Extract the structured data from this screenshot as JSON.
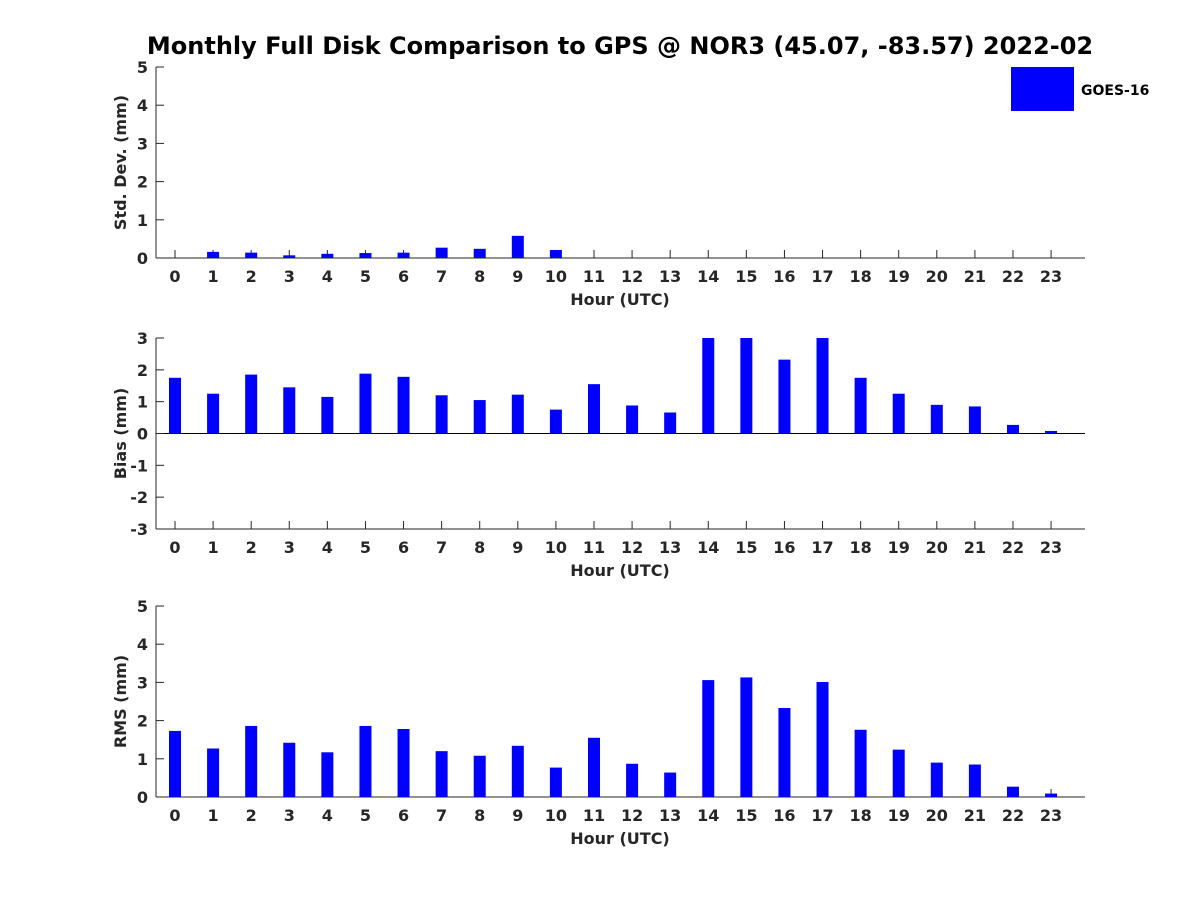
{
  "title": "Monthly Full Disk Comparison to GPS @ NOR3 (45.07, -83.57) 2022-02",
  "legend": {
    "label": "GOES-16",
    "color": "#0000ff"
  },
  "chart_data": [
    {
      "type": "bar",
      "panel": "std",
      "xlabel": "Hour (UTC)",
      "ylabel": "Std. Dev. (mm)",
      "ylim": [
        0,
        5
      ],
      "yticks": [
        0,
        1,
        2,
        3,
        4,
        5
      ],
      "categories": [
        "0",
        "1",
        "2",
        "3",
        "4",
        "5",
        "6",
        "7",
        "8",
        "9",
        "10",
        "11",
        "12",
        "13",
        "14",
        "15",
        "16",
        "17",
        "18",
        "19",
        "20",
        "21",
        "22",
        "23"
      ],
      "series": [
        {
          "name": "GOES-16",
          "values": [
            0,
            0.16,
            0.14,
            0.07,
            0.11,
            0.13,
            0.14,
            0.27,
            0.24,
            0.58,
            0.21,
            0,
            0,
            0,
            0,
            0,
            0,
            0,
            0,
            0,
            0,
            0,
            0,
            0
          ]
        }
      ]
    },
    {
      "type": "bar",
      "panel": "bias",
      "xlabel": "Hour (UTC)",
      "ylabel": "Bias (mm)",
      "ylim": [
        -3,
        3
      ],
      "yticks": [
        -3,
        -2,
        -1,
        0,
        1,
        2,
        3
      ],
      "categories": [
        "0",
        "1",
        "2",
        "3",
        "4",
        "5",
        "6",
        "7",
        "8",
        "9",
        "10",
        "11",
        "12",
        "13",
        "14",
        "15",
        "16",
        "17",
        "18",
        "19",
        "20",
        "21",
        "22",
        "23"
      ],
      "series": [
        {
          "name": "GOES-16",
          "values": [
            1.75,
            1.25,
            1.85,
            1.45,
            1.15,
            1.88,
            1.78,
            1.2,
            1.05,
            1.22,
            0.75,
            1.55,
            0.88,
            0.66,
            3.0,
            3.0,
            2.32,
            3.0,
            1.75,
            1.25,
            0.9,
            0.85,
            0.27,
            0.08
          ]
        }
      ]
    },
    {
      "type": "bar",
      "panel": "rms",
      "xlabel": "Hour (UTC)",
      "ylabel": "RMS (mm)",
      "ylim": [
        0,
        5
      ],
      "yticks": [
        0,
        1,
        2,
        3,
        4,
        5
      ],
      "categories": [
        "0",
        "1",
        "2",
        "3",
        "4",
        "5",
        "6",
        "7",
        "8",
        "9",
        "10",
        "11",
        "12",
        "13",
        "14",
        "15",
        "16",
        "17",
        "18",
        "19",
        "20",
        "21",
        "22",
        "23"
      ],
      "series": [
        {
          "name": "GOES-16",
          "values": [
            1.73,
            1.27,
            1.86,
            1.42,
            1.17,
            1.86,
            1.78,
            1.2,
            1.08,
            1.34,
            0.77,
            1.55,
            0.87,
            0.64,
            3.06,
            3.13,
            2.33,
            3.01,
            1.76,
            1.24,
            0.9,
            0.85,
            0.27,
            0.09
          ]
        }
      ]
    }
  ]
}
